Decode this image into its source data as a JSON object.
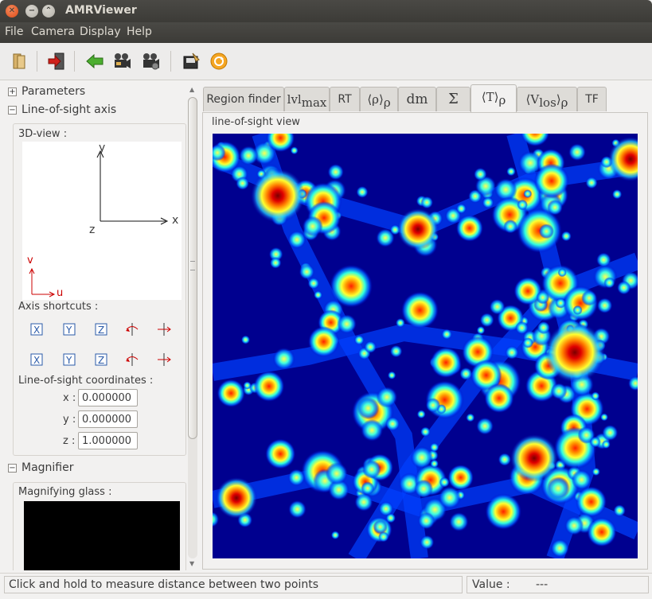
{
  "window": {
    "title": "AMRViewer"
  },
  "menu": [
    "File",
    "Camera",
    "Display",
    "Help"
  ],
  "toolbar": {
    "icons": [
      "open-file-icon",
      "exit-icon",
      "back-arrow-icon",
      "camera-icon",
      "camera-settings-icon",
      "save-image-icon",
      "refresh-icon"
    ]
  },
  "left_panel": {
    "parameters": {
      "label": "Parameters",
      "expander": "+"
    },
    "line_of_sight_axis": {
      "label": "Line-of-sight axis",
      "expander": "−"
    },
    "view3d": {
      "label": "3D-view :",
      "axis_x": "x",
      "axis_y": "y",
      "axis_z": "z",
      "axis_u": "u",
      "axis_v": "v",
      "uv_color": "#cc0000"
    },
    "axis_shortcuts": {
      "label": "Axis shortcuts :",
      "row1": [
        "X",
        "Y",
        "Z",
        "rotate-icon",
        "flip-icon"
      ],
      "row2": [
        "X",
        "Y",
        "Z",
        "rotate-icon",
        "flip-icon"
      ]
    },
    "los_coords": {
      "label": "Line-of-sight coordinates :",
      "x_label": "x :",
      "x_value": "0.000000",
      "y_label": "y :",
      "y_value": "0.000000",
      "z_label": "z :",
      "z_value": "1.000000"
    },
    "magnifier": {
      "label": "Magnifier",
      "expander": "−"
    },
    "magnifying_glass": {
      "label": "Magnifying glass :"
    }
  },
  "tabs": [
    {
      "id": "region",
      "label": "Region finder"
    },
    {
      "id": "lvl",
      "label": "lvl",
      "sub": "max"
    },
    {
      "id": "rt",
      "label": "RT"
    },
    {
      "id": "rho",
      "label": "⟨ρ⟩",
      "sub": "ρ"
    },
    {
      "id": "dm",
      "label": "dm"
    },
    {
      "id": "sigma",
      "label": "Σ"
    },
    {
      "id": "temp",
      "label": "⟨T⟩",
      "sub": "ρ",
      "active": true
    },
    {
      "id": "vlos",
      "label": "⟨V",
      "label_sub": "los",
      "label_end": "⟩",
      "sub": "ρ"
    },
    {
      "id": "tf",
      "label": "TF"
    }
  ],
  "view": {
    "label": "line-of-sight view"
  },
  "status": {
    "message": "Click and hold to measure distance between two points",
    "value_label": "Value :",
    "value": "---"
  },
  "colors": {
    "titlebar": "#3c3b37",
    "close": "#df4a16",
    "heatmap_bg": "#00008f"
  }
}
